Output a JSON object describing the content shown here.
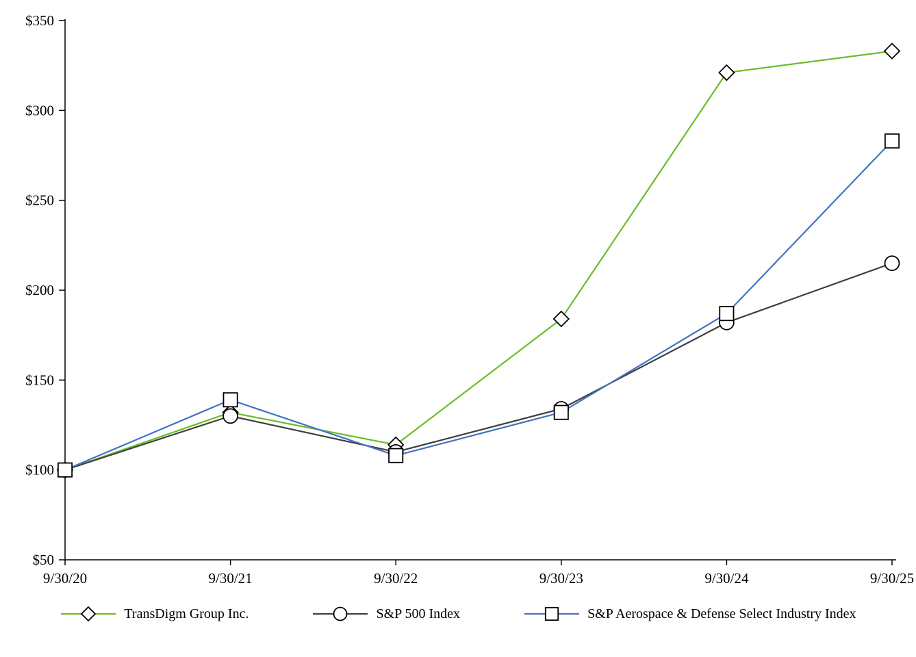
{
  "chart_data": {
    "type": "line",
    "title": "",
    "xlabel": "",
    "ylabel": "",
    "categories": [
      "9/30/20",
      "9/30/21",
      "9/30/22",
      "9/30/23",
      "9/30/24",
      "9/30/25"
    ],
    "series": [
      {
        "name": "TransDigm Group Inc.",
        "marker": "diamond",
        "color": "#69bd28",
        "values": [
          100,
          132,
          114,
          184,
          321,
          333
        ]
      },
      {
        "name": "S&P 500 Index",
        "marker": "circle",
        "color": "#404040",
        "values": [
          100,
          130,
          110,
          134,
          182,
          215
        ]
      },
      {
        "name": "S&P Aerospace & Defense Select Industry Index",
        "marker": "square",
        "color": "#4472c4",
        "values": [
          100,
          139,
          108,
          132,
          187,
          283
        ]
      }
    ],
    "ylim": [
      50,
      350
    ],
    "yticks": [
      50,
      100,
      150,
      200,
      250,
      300,
      350
    ],
    "ytick_labels": [
      "$50",
      "$100",
      "$150",
      "$200",
      "$250",
      "$300",
      "$350"
    ],
    "grid": false,
    "legend_position": "bottom",
    "axis_color": "#000000",
    "marker_fill": "#ffffff",
    "marker_stroke": "#000000"
  }
}
